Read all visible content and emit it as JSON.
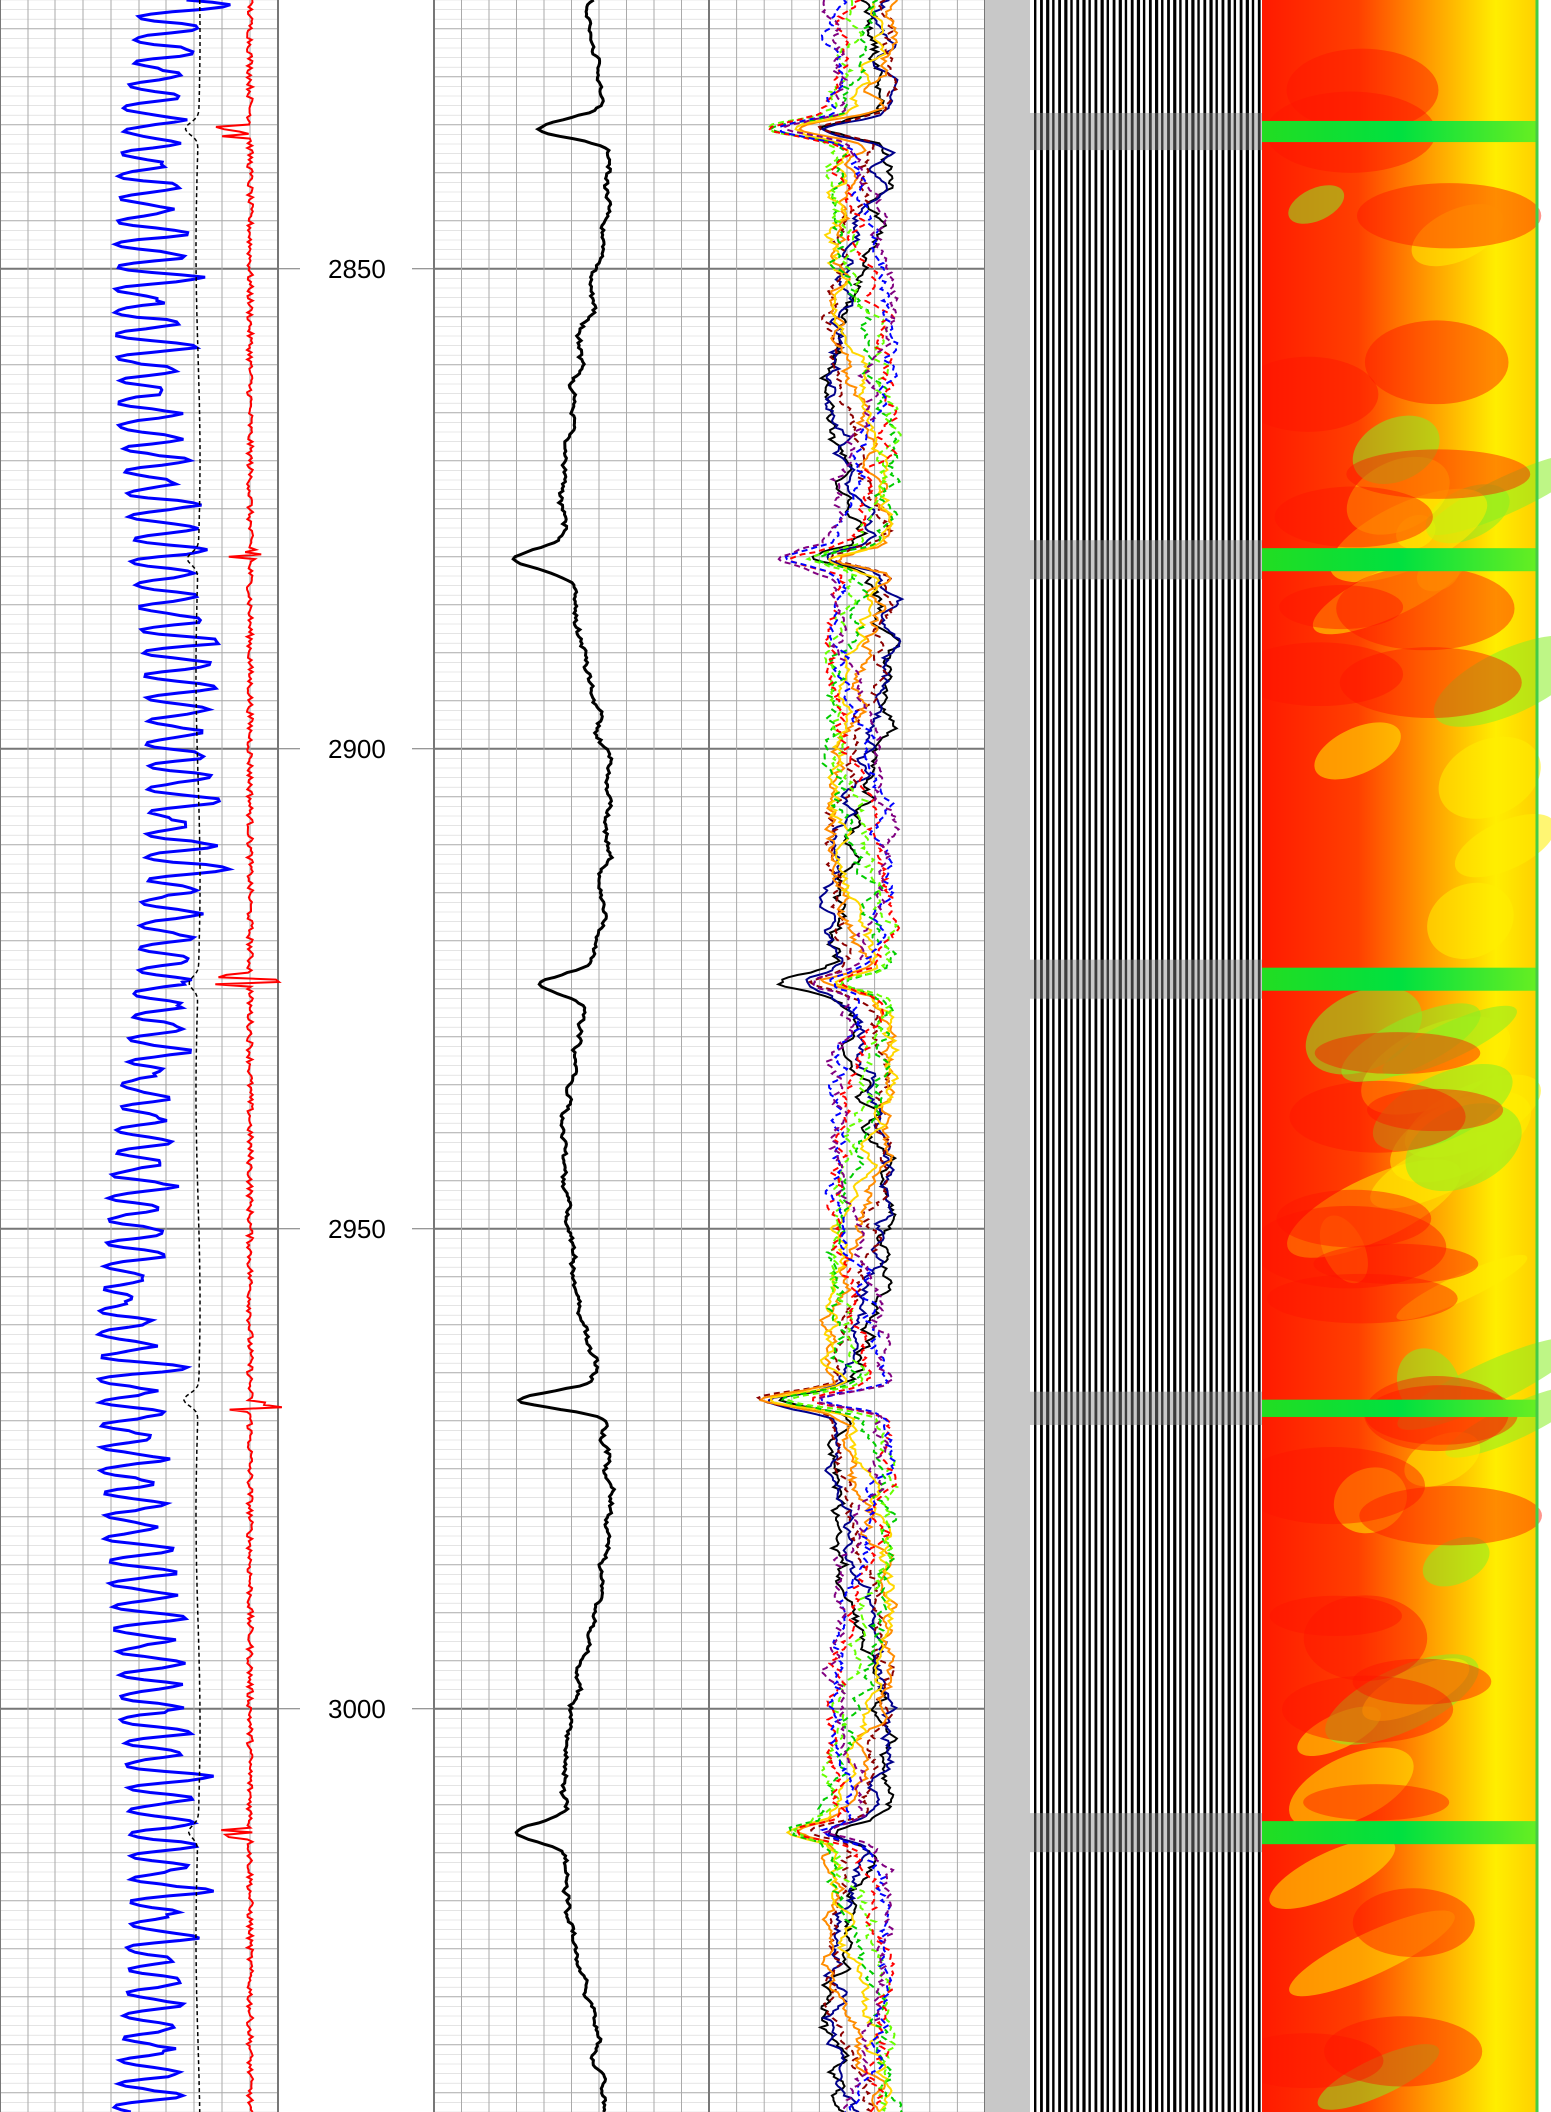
{
  "chart_data": {
    "type": "line",
    "depth_unit": "",
    "depth_range": [
      2822,
      3042
    ],
    "depth_ticks": [
      "2850",
      "2900",
      "2950",
      "3000"
    ],
    "tracks": [
      {
        "name": "track-1",
        "curves": [
          {
            "color": "#0000ff",
            "style": "solid",
            "role": "wiggly-curve"
          },
          {
            "color": "#000000",
            "style": "dashed",
            "role": "thin-curve"
          },
          {
            "color": "#ff0000",
            "style": "solid",
            "role": "spiky-curve"
          }
        ],
        "spike_depths": [
          2835.6,
          2879.8,
          2924.0,
          2968.6,
          3013.0
        ]
      },
      {
        "name": "depth-track",
        "labels": [
          "2850",
          "2900",
          "2950",
          "3000"
        ]
      },
      {
        "name": "track-3",
        "curves": [
          {
            "color": "#000000",
            "style": "solid",
            "role": "main-curve"
          }
        ],
        "kicks": [
          {
            "depth": 2835.4,
            "deflection": -0.72
          },
          {
            "depth": 2880.2,
            "deflection": -0.6
          },
          {
            "depth": 2924.4,
            "deflection": -0.5
          },
          {
            "depth": 2967.8,
            "deflection": -0.8
          },
          {
            "depth": 3012.8,
            "deflection": -0.52
          }
        ]
      },
      {
        "name": "track-4",
        "curves": [
          {
            "color": "#000000",
            "style": "solid"
          },
          {
            "color": "#00008b",
            "style": "solid"
          },
          {
            "color": "#8b0000",
            "style": "dashed"
          },
          {
            "color": "#ff8c00",
            "style": "solid"
          },
          {
            "color": "#ffd700",
            "style": "solid"
          },
          {
            "color": "#00cc00",
            "style": "dashed"
          },
          {
            "color": "#66ff00",
            "style": "dashed"
          },
          {
            "color": "#ff0000",
            "style": "dashed"
          },
          {
            "color": "#0000ff",
            "style": "dashed"
          },
          {
            "color": "#800080",
            "style": "dashed"
          }
        ]
      },
      {
        "name": "waveform-track",
        "type": "variable-density"
      },
      {
        "name": "heatmap-track",
        "type": "heatmap",
        "colormap": [
          "#ff0000",
          "#ff6600",
          "#ffff00",
          "#00e000"
        ],
        "green_band_depths": [
          [
            2834.6,
            2836.8
          ],
          [
            2879.1,
            2881.5
          ],
          [
            2922.8,
            2925.2
          ],
          [
            2967.8,
            2969.6
          ],
          [
            3011.7,
            3014.1
          ]
        ]
      }
    ]
  }
}
